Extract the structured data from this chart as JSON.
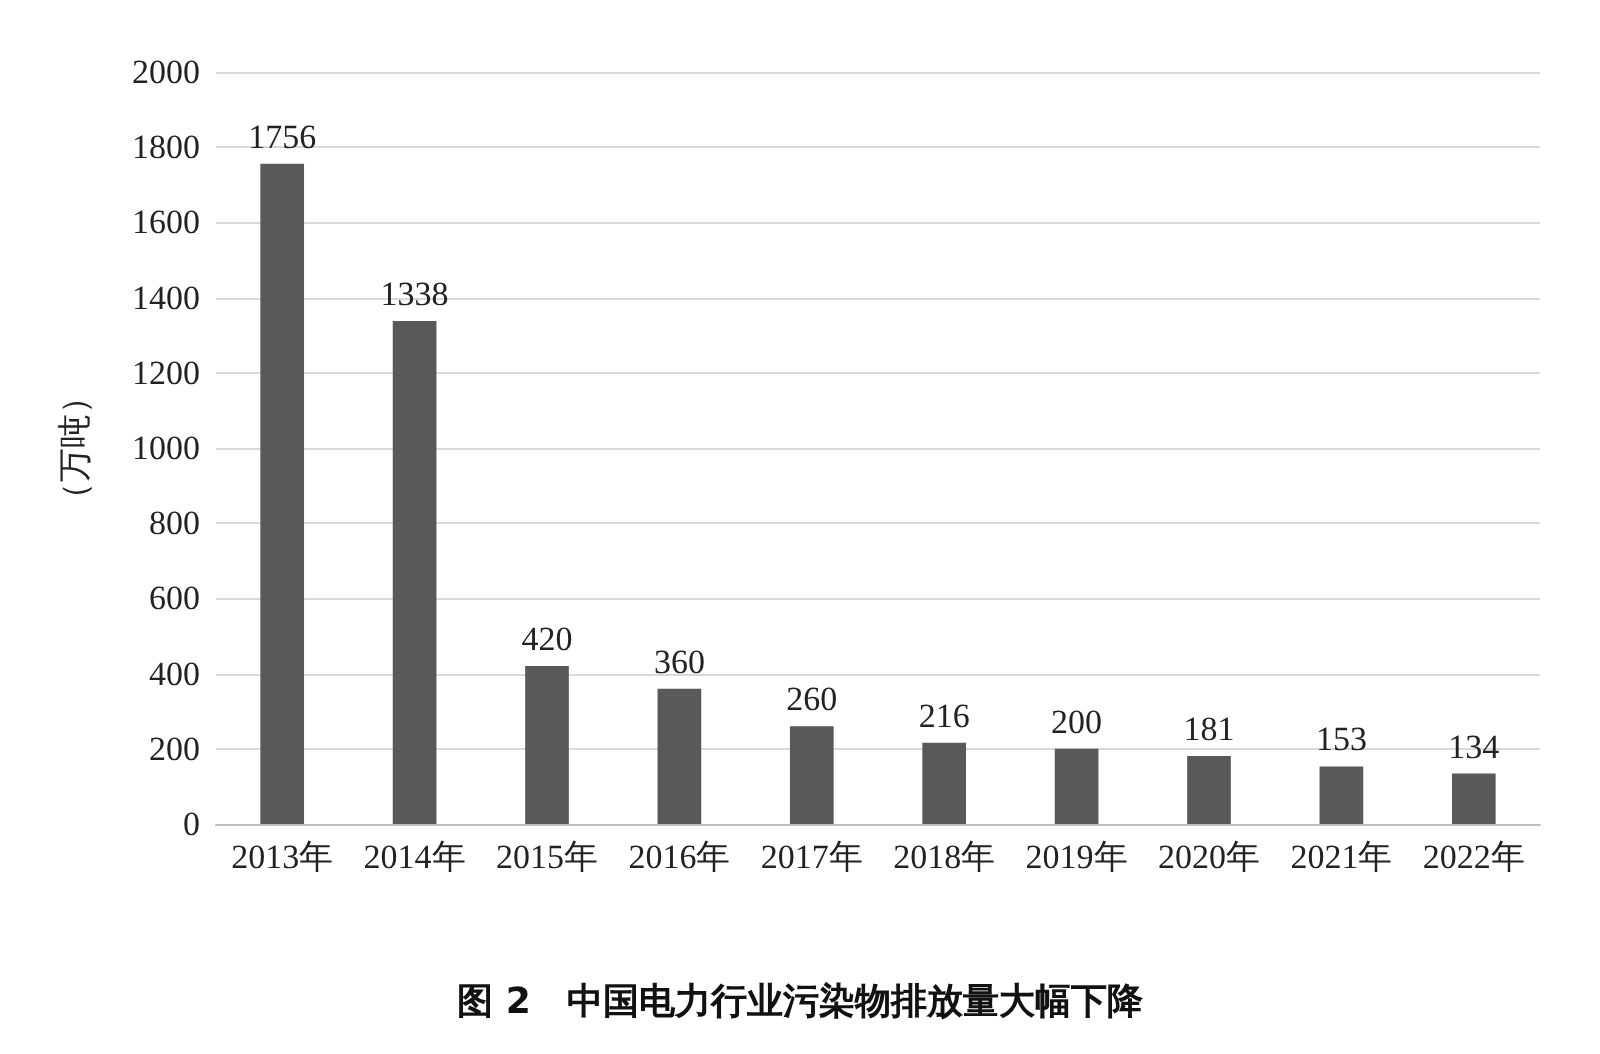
{
  "chart_data": {
    "type": "bar",
    "title": "图 2　中国电力行业污染物排放量大幅下降",
    "ylabel": "（万吨）",
    "categories": [
      "2013年",
      "2014年",
      "2015年",
      "2016年",
      "2017年",
      "2018年",
      "2019年",
      "2020年",
      "2021年",
      "2022年"
    ],
    "values": [
      1756,
      1338,
      420,
      360,
      260,
      216,
      200,
      181,
      153,
      134
    ],
    "color": "#595959",
    "ylim": [
      0,
      2000
    ],
    "yticks": [
      0,
      200,
      400,
      600,
      800,
      1000,
      1200,
      1400,
      1600,
      1800,
      2000
    ],
    "grid": "y",
    "data_labels": true
  }
}
